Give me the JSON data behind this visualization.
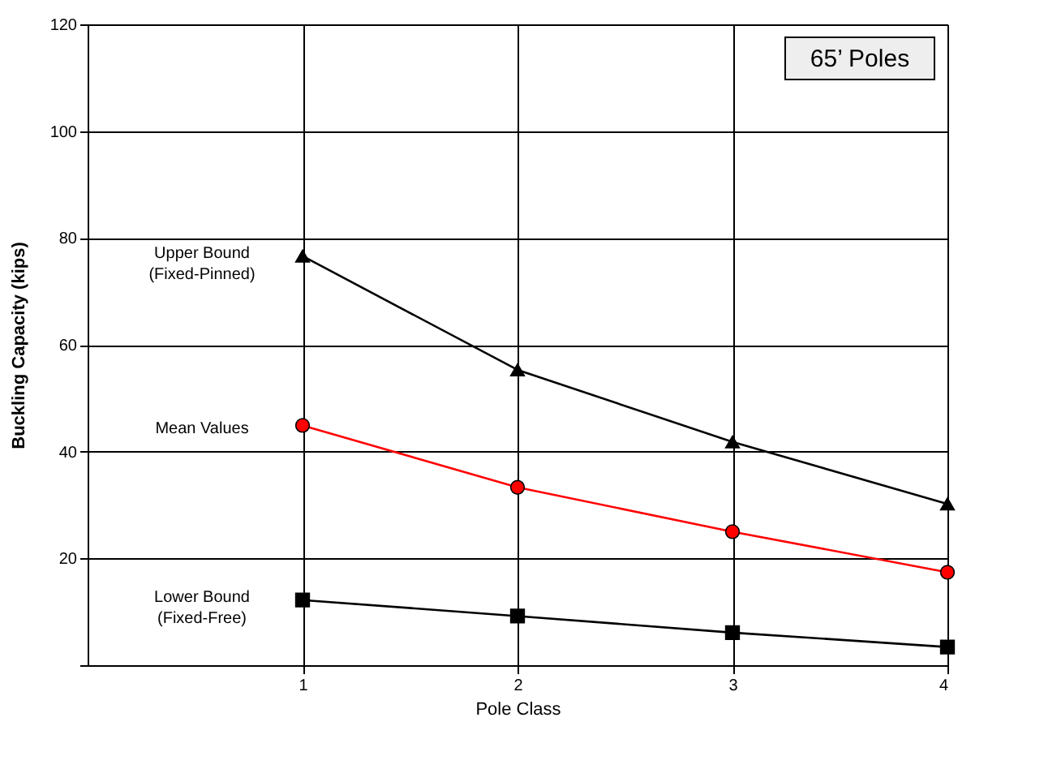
{
  "chart_data": {
    "type": "line",
    "title": "65’ Poles",
    "xlabel": "Pole Class",
    "ylabel": "Buckling Capacity (kips)",
    "x": [
      1,
      2,
      3,
      4
    ],
    "xlim": [
      0,
      4
    ],
    "xticks": [
      1,
      2,
      3,
      4
    ],
    "ylim": [
      0,
      120
    ],
    "yticks": [
      {
        "value": 0,
        "label": null
      },
      20,
      40,
      60,
      80,
      100,
      120
    ],
    "grid": true,
    "legend": false,
    "series": [
      {
        "name": "Upper Bound\n(Fixed-Pinned)",
        "color": "#000000",
        "marker": "triangle",
        "values": [
          76.6,
          55.3,
          41.8,
          30.2
        ]
      },
      {
        "name": "Mean Values",
        "color": "#ff0000",
        "marker": "circle",
        "values": [
          44.9,
          33.3,
          25.0,
          17.4
        ]
      },
      {
        "name": "Lower Bound\n(Fixed-Free)",
        "color": "#000000",
        "marker": "square",
        "values": [
          12.2,
          9.2,
          6.1,
          3.4
        ]
      }
    ]
  }
}
